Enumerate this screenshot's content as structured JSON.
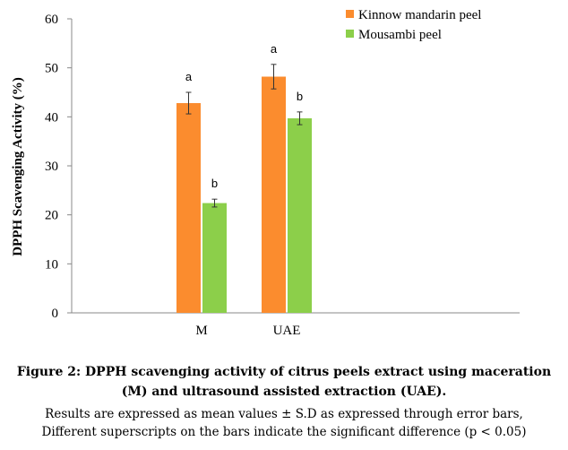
{
  "chart_data": {
    "type": "bar",
    "title": "",
    "xlabel": "",
    "ylabel": "DPPH Scavenging Activity (%)",
    "ylim": [
      0,
      60
    ],
    "yticks": [
      "0",
      "10",
      "20",
      "30",
      "40",
      "50",
      "60"
    ],
    "categories": [
      "M",
      "UAE"
    ],
    "series": [
      {
        "name": "Kinnow mandarin peel",
        "color": "#fb8c2e",
        "values": [
          42.8,
          48.2
        ],
        "errors": [
          2.2,
          2.5
        ],
        "labels": [
          "a",
          "a"
        ]
      },
      {
        "name": "Mousambi peel",
        "color": "#8ccf4a",
        "values": [
          22.4,
          39.7
        ],
        "errors": [
          0.8,
          1.3
        ],
        "labels": [
          "b",
          "b"
        ]
      }
    ],
    "grid": false,
    "legend_position": "top-right"
  },
  "caption": {
    "title": "Figure 2: DPPH scavenging activity of citrus peels extract using maceration (M) and ultrasound assisted extraction (UAE).",
    "line1": "Results are expressed as mean values ± S.D as expressed through error bars,",
    "line2": "Different superscripts on the bars indicate the significant difference (p < 0.05)"
  }
}
